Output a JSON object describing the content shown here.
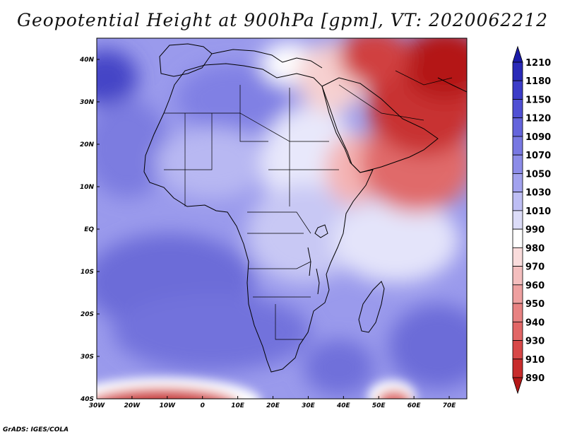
{
  "title": "Geopotential Height at 900hPa [gpm], VT: 2020062212",
  "credit": "GrADS: IGES/COLA",
  "map": {
    "variable": "Geopotential Height",
    "level": "900hPa",
    "units": "gpm",
    "valid_time": "2020062212",
    "lon_range": [
      -30,
      75
    ],
    "lat_range": [
      -40,
      45
    ],
    "x_ticks": [
      {
        "lon": -30,
        "label": "30W"
      },
      {
        "lon": -20,
        "label": "20W"
      },
      {
        "lon": -10,
        "label": "10W"
      },
      {
        "lon": 0,
        "label": "0"
      },
      {
        "lon": 10,
        "label": "10E"
      },
      {
        "lon": 20,
        "label": "20E"
      },
      {
        "lon": 30,
        "label": "30E"
      },
      {
        "lon": 40,
        "label": "40E"
      },
      {
        "lon": 50,
        "label": "50E"
      },
      {
        "lon": 60,
        "label": "60E"
      },
      {
        "lon": 70,
        "label": "70E"
      }
    ],
    "y_ticks": [
      {
        "lat": 40,
        "label": "40N"
      },
      {
        "lat": 30,
        "label": "30N"
      },
      {
        "lat": 20,
        "label": "20N"
      },
      {
        "lat": 10,
        "label": "10N"
      },
      {
        "lat": 0,
        "label": "EQ"
      },
      {
        "lat": -10,
        "label": "10S"
      },
      {
        "lat": -20,
        "label": "20S"
      },
      {
        "lat": -30,
        "label": "30S"
      },
      {
        "lat": -40,
        "label": "40S"
      }
    ]
  },
  "colorbar": {
    "levels": [
      "1210",
      "1180",
      "1150",
      "1120",
      "1090",
      "1070",
      "1050",
      "1030",
      "1010",
      "990",
      "980",
      "970",
      "960",
      "950",
      "940",
      "930",
      "910",
      "890"
    ],
    "colors": [
      "#1a1aa8",
      "#2a2ab8",
      "#3c3cc8",
      "#5050d4",
      "#6464dc",
      "#7878e2",
      "#8c8ce8",
      "#a2a2ee",
      "#bebef4",
      "#dcdcf8",
      "#ffffff",
      "#fadcdc",
      "#f4bebe",
      "#eea0a0",
      "#e88282",
      "#e26666",
      "#d84848",
      "#c82c2c",
      "#b41818"
    ]
  }
}
